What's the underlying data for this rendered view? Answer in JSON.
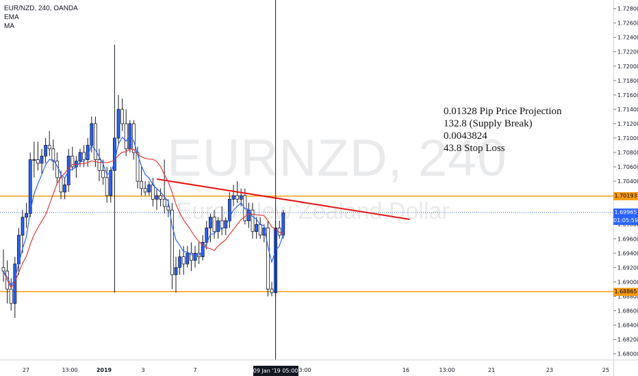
{
  "legend": {
    "symbol": "EUR/NZD, 240, OANDA",
    "ema": "EMA",
    "ma": "MA"
  },
  "watermark": {
    "symbol": "EURNZD, 240",
    "name": "Euro / New Zealand Dollar"
  },
  "annotation": {
    "lines": [
      "0.01328 Pip Price Projection",
      "132.8 (Supply Break)",
      "0.0043824",
      "43.8 Stop Loss"
    ]
  },
  "price_axis": {
    "ticks": [
      "1.72800",
      "1.72600",
      "1.72400",
      "1.72200",
      "1.72000",
      "1.71800",
      "1.71600",
      "1.71400",
      "1.71200",
      "1.71000",
      "1.70800",
      "1.70600",
      "1.70400",
      "1.69800",
      "1.69600",
      "1.69400",
      "1.69200",
      "1.69000",
      "1.68800",
      "1.68600",
      "1.68400",
      "1.68200",
      "1.68000"
    ],
    "tick_values": [
      1.728,
      1.726,
      1.724,
      1.722,
      1.72,
      1.718,
      1.716,
      1.714,
      1.712,
      1.71,
      1.708,
      1.706,
      1.704,
      1.698,
      1.696,
      1.694,
      1.692,
      1.69,
      1.688,
      1.686,
      1.684,
      1.682,
      1.68
    ]
  },
  "time_axis": {
    "labels": [
      "27",
      "13:00",
      "2019",
      "3",
      "7",
      "13:00",
      "16",
      "13:00",
      "21",
      "23",
      "25"
    ],
    "cursor_label": "09 Jan '19   05:00"
  },
  "badges": {
    "resistance": "1.70193",
    "current": "1.69965",
    "countdown": "01:05:59",
    "support": "1.68865"
  },
  "colors": {
    "bull": "#2962ff",
    "bear": "#ffffff",
    "outline": "#131722",
    "ema": "#2962ff",
    "ma": "#e53935",
    "level": "#f89c1a",
    "trendline": "#e8110f",
    "current": "#2962ff"
  },
  "chart_data": {
    "type": "candlestick",
    "symbol": "EUR/NZD",
    "interval": "240",
    "source": "OANDA",
    "ylim": [
      1.6792,
      1.7292
    ],
    "levels": {
      "resistance": 1.70193,
      "current": 1.69965,
      "support": 1.68865
    },
    "trendline": {
      "from": [
        40,
        1.7043
      ],
      "to": [
        106,
        1.6987
      ]
    },
    "cursor_index": 71,
    "candles": [
      {
        "o": 1.692,
        "h": 1.6945,
        "l": 1.69,
        "c": 1.6915
      },
      {
        "o": 1.6915,
        "h": 1.693,
        "l": 1.687,
        "c": 1.689
      },
      {
        "o": 1.689,
        "h": 1.6905,
        "l": 1.686,
        "c": 1.687
      },
      {
        "o": 1.687,
        "h": 1.6935,
        "l": 1.685,
        "c": 1.6925
      },
      {
        "o": 1.6925,
        "h": 1.6975,
        "l": 1.691,
        "c": 1.6965
      },
      {
        "o": 1.6965,
        "h": 1.7,
        "l": 1.694,
        "c": 1.699
      },
      {
        "o": 1.699,
        "h": 1.701,
        "l": 1.6975,
        "c": 1.6995
      },
      {
        "o": 1.6995,
        "h": 1.708,
        "l": 1.699,
        "c": 1.707
      },
      {
        "o": 1.707,
        "h": 1.7095,
        "l": 1.7045,
        "c": 1.707
      },
      {
        "o": 1.707,
        "h": 1.7095,
        "l": 1.7055,
        "c": 1.7065
      },
      {
        "o": 1.7065,
        "h": 1.7085,
        "l": 1.705,
        "c": 1.7075
      },
      {
        "o": 1.7075,
        "h": 1.71,
        "l": 1.7065,
        "c": 1.709
      },
      {
        "o": 1.709,
        "h": 1.711,
        "l": 1.7075,
        "c": 1.7085
      },
      {
        "o": 1.7085,
        "h": 1.7098,
        "l": 1.7055,
        "c": 1.7068
      },
      {
        "o": 1.7068,
        "h": 1.708,
        "l": 1.7035,
        "c": 1.7045
      },
      {
        "o": 1.7045,
        "h": 1.7055,
        "l": 1.7015,
        "c": 1.7025
      },
      {
        "o": 1.7025,
        "h": 1.7045,
        "l": 1.7015,
        "c": 1.7035
      },
      {
        "o": 1.7035,
        "h": 1.7085,
        "l": 1.7025,
        "c": 1.7075
      },
      {
        "o": 1.7075,
        "h": 1.7088,
        "l": 1.7055,
        "c": 1.706
      },
      {
        "o": 1.706,
        "h": 1.7075,
        "l": 1.7045,
        "c": 1.7068
      },
      {
        "o": 1.7068,
        "h": 1.7085,
        "l": 1.706,
        "c": 1.708
      },
      {
        "o": 1.708,
        "h": 1.709,
        "l": 1.706,
        "c": 1.707
      },
      {
        "o": 1.707,
        "h": 1.71,
        "l": 1.706,
        "c": 1.709
      },
      {
        "o": 1.709,
        "h": 1.713,
        "l": 1.708,
        "c": 1.712
      },
      {
        "o": 1.712,
        "h": 1.713,
        "l": 1.706,
        "c": 1.707
      },
      {
        "o": 1.707,
        "h": 1.7085,
        "l": 1.704,
        "c": 1.7055
      },
      {
        "o": 1.7055,
        "h": 1.707,
        "l": 1.7035,
        "c": 1.7045
      },
      {
        "o": 1.7045,
        "h": 1.706,
        "l": 1.701,
        "c": 1.702
      },
      {
        "o": 1.702,
        "h": 1.706,
        "l": 1.701,
        "c": 1.7055
      },
      {
        "o": 1.7055,
        "h": 1.723,
        "l": 1.6885,
        "c": 1.71
      },
      {
        "o": 1.71,
        "h": 1.716,
        "l": 1.709,
        "c": 1.714
      },
      {
        "o": 1.714,
        "h": 1.7155,
        "l": 1.711,
        "c": 1.712
      },
      {
        "o": 1.712,
        "h": 1.714,
        "l": 1.7075,
        "c": 1.7085
      },
      {
        "o": 1.7085,
        "h": 1.7125,
        "l": 1.708,
        "c": 1.712
      },
      {
        "o": 1.712,
        "h": 1.7125,
        "l": 1.707,
        "c": 1.708
      },
      {
        "o": 1.708,
        "h": 1.7088,
        "l": 1.703,
        "c": 1.704
      },
      {
        "o": 1.704,
        "h": 1.706,
        "l": 1.702,
        "c": 1.703
      },
      {
        "o": 1.703,
        "h": 1.704,
        "l": 1.702,
        "c": 1.7025
      },
      {
        "o": 1.7025,
        "h": 1.704,
        "l": 1.702,
        "c": 1.7035
      },
      {
        "o": 1.7035,
        "h": 1.7045,
        "l": 1.7005,
        "c": 1.7015
      },
      {
        "o": 1.7015,
        "h": 1.703,
        "l": 1.7,
        "c": 1.702
      },
      {
        "o": 1.702,
        "h": 1.703,
        "l": 1.7005,
        "c": 1.7015
      },
      {
        "o": 1.7015,
        "h": 1.707,
        "l": 1.6995,
        "c": 1.7005
      },
      {
        "o": 1.7005,
        "h": 1.7015,
        "l": 1.699,
        "c": 1.7
      },
      {
        "o": 1.7,
        "h": 1.701,
        "l": 1.689,
        "c": 1.691
      },
      {
        "o": 1.691,
        "h": 1.6935,
        "l": 1.6885,
        "c": 1.692
      },
      {
        "o": 1.692,
        "h": 1.6945,
        "l": 1.691,
        "c": 1.6935
      },
      {
        "o": 1.6935,
        "h": 1.695,
        "l": 1.691,
        "c": 1.6925
      },
      {
        "o": 1.6925,
        "h": 1.695,
        "l": 1.692,
        "c": 1.694
      },
      {
        "o": 1.694,
        "h": 1.6955,
        "l": 1.6915,
        "c": 1.693
      },
      {
        "o": 1.693,
        "h": 1.695,
        "l": 1.692,
        "c": 1.694
      },
      {
        "o": 1.694,
        "h": 1.6955,
        "l": 1.6925,
        "c": 1.6935
      },
      {
        "o": 1.6935,
        "h": 1.6965,
        "l": 1.693,
        "c": 1.6955
      },
      {
        "o": 1.6955,
        "h": 1.6985,
        "l": 1.6945,
        "c": 1.6975
      },
      {
        "o": 1.6975,
        "h": 1.6995,
        "l": 1.6955,
        "c": 1.699
      },
      {
        "o": 1.699,
        "h": 1.7,
        "l": 1.696,
        "c": 1.697
      },
      {
        "o": 1.697,
        "h": 1.699,
        "l": 1.696,
        "c": 1.6985
      },
      {
        "o": 1.6985,
        "h": 1.7005,
        "l": 1.6965,
        "c": 1.6975
      },
      {
        "o": 1.6975,
        "h": 1.699,
        "l": 1.6965,
        "c": 1.6985
      },
      {
        "o": 1.6985,
        "h": 1.7025,
        "l": 1.6975,
        "c": 1.7015
      },
      {
        "o": 1.7015,
        "h": 1.7035,
        "l": 1.7005,
        "c": 1.702
      },
      {
        "o": 1.702,
        "h": 1.704,
        "l": 1.701,
        "c": 1.7015
      },
      {
        "o": 1.7015,
        "h": 1.703,
        "l": 1.7005,
        "c": 1.702
      },
      {
        "o": 1.702,
        "h": 1.703,
        "l": 1.698,
        "c": 1.6985
      },
      {
        "o": 1.6985,
        "h": 1.701,
        "l": 1.6975,
        "c": 1.7
      },
      {
        "o": 1.7,
        "h": 1.701,
        "l": 1.696,
        "c": 1.697
      },
      {
        "o": 1.697,
        "h": 1.699,
        "l": 1.696,
        "c": 1.698
      },
      {
        "o": 1.698,
        "h": 1.699,
        "l": 1.696,
        "c": 1.6965
      },
      {
        "o": 1.6965,
        "h": 1.698,
        "l": 1.6955,
        "c": 1.6975
      },
      {
        "o": 1.6975,
        "h": 1.6985,
        "l": 1.688,
        "c": 1.689
      },
      {
        "o": 1.689,
        "h": 1.69,
        "l": 1.688,
        "c": 1.6885
      },
      {
        "o": 1.6885,
        "h": 1.6985,
        "l": 1.688,
        "c": 1.6975
      },
      {
        "o": 1.6975,
        "h": 1.6985,
        "l": 1.696,
        "c": 1.6965
      },
      {
        "o": 1.6965,
        "h": 1.7,
        "l": 1.696,
        "c": 1.6996
      }
    ]
  }
}
